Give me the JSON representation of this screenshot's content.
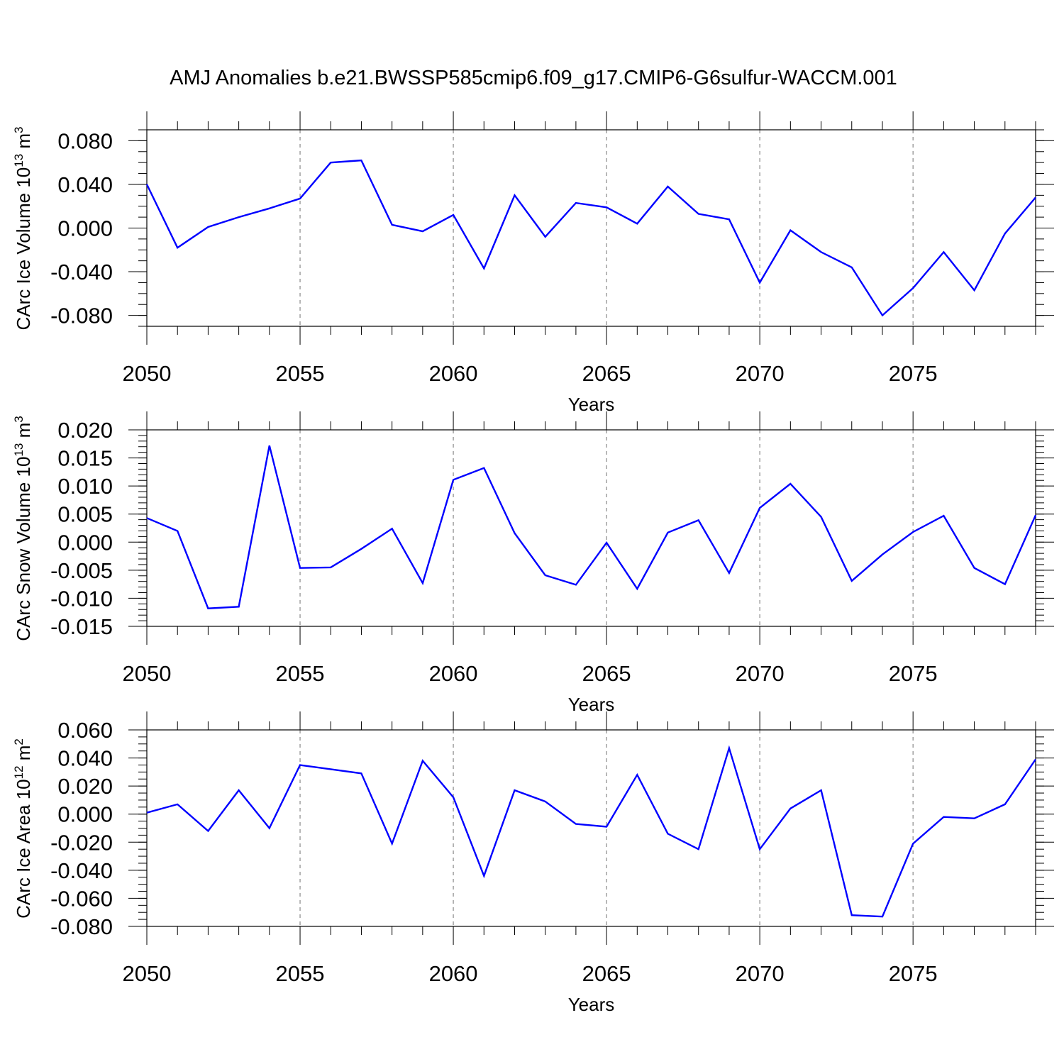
{
  "figure": {
    "title": "AMJ Anomalies b.e21.BWSSP585cmip6.f09_g17.CMIP6-G6sulfur-WACCM.001"
  },
  "chart_data": [
    {
      "type": "line",
      "ylabel": "CArc Ice Volume 10",
      "ylabel_exponent": "13",
      "ylabel_unit": "m",
      "ylabel_unit_exponent": "3",
      "xlabel": "Years",
      "xlim": [
        2050,
        2079
      ],
      "ylim": [
        -0.09,
        0.09
      ],
      "xticks": [
        2050,
        2055,
        2060,
        2065,
        2070,
        2075
      ],
      "xtick_labels": [
        "2050",
        "2055",
        "2060",
        "2065",
        "2070",
        "2075"
      ],
      "yticks": [
        -0.08,
        -0.04,
        0.0,
        0.04,
        0.08
      ],
      "ytick_labels": [
        "-0.080",
        "-0.040",
        "0.000",
        "0.040",
        "0.080"
      ],
      "yminor_step": 0.01,
      "grid": "vertical-dashed",
      "color": "#0000ff",
      "x": [
        2050,
        2051,
        2052,
        2053,
        2054,
        2055,
        2056,
        2057,
        2058,
        2059,
        2060,
        2061,
        2062,
        2063,
        2064,
        2065,
        2066,
        2067,
        2068,
        2069,
        2070,
        2071,
        2072,
        2073,
        2074,
        2075,
        2076,
        2077,
        2078,
        2079
      ],
      "values": [
        0.04,
        -0.018,
        0.001,
        0.01,
        0.018,
        0.027,
        0.06,
        0.062,
        0.003,
        -0.003,
        0.012,
        -0.037,
        0.03,
        -0.008,
        0.023,
        0.019,
        0.004,
        0.038,
        0.013,
        0.008,
        -0.05,
        -0.002,
        -0.022,
        -0.036,
        -0.08,
        -0.055,
        -0.022,
        -0.057,
        -0.005,
        0.028
      ]
    },
    {
      "type": "line",
      "ylabel": "CArc Snow Volume 10",
      "ylabel_exponent": "13",
      "ylabel_unit": "m",
      "ylabel_unit_exponent": "3",
      "xlabel": "Years",
      "xlim": [
        2050,
        2079
      ],
      "ylim": [
        -0.015,
        0.02
      ],
      "xticks": [
        2050,
        2055,
        2060,
        2065,
        2070,
        2075
      ],
      "xtick_labels": [
        "2050",
        "2055",
        "2060",
        "2065",
        "2070",
        "2075"
      ],
      "yticks": [
        -0.015,
        -0.01,
        -0.005,
        0.0,
        0.005,
        0.01,
        0.015,
        0.02
      ],
      "ytick_labels": [
        "-0.015",
        "-0.010",
        "-0.005",
        "0.000",
        "0.005",
        "0.010",
        "0.015",
        "0.020"
      ],
      "yminor_step": 0.001,
      "grid": "vertical-dashed",
      "color": "#0000ff",
      "x": [
        2050,
        2051,
        2052,
        2053,
        2054,
        2055,
        2056,
        2057,
        2058,
        2059,
        2060,
        2061,
        2062,
        2063,
        2064,
        2065,
        2066,
        2067,
        2068,
        2069,
        2070,
        2071,
        2072,
        2073,
        2074,
        2075,
        2076,
        2077,
        2078,
        2079
      ],
      "values": [
        0.0043,
        0.002,
        -0.0118,
        -0.0115,
        0.0172,
        -0.0046,
        -0.0045,
        -0.0012,
        0.0024,
        -0.0073,
        0.0111,
        0.0132,
        0.0016,
        -0.0059,
        -0.0076,
        -0.0001,
        -0.0083,
        0.0017,
        0.0039,
        -0.0055,
        0.0061,
        0.0104,
        0.0045,
        -0.0069,
        -0.0022,
        0.0018,
        0.0047,
        -0.0046,
        -0.0075,
        0.0048
      ]
    },
    {
      "type": "line",
      "ylabel": "CArc Ice Area 10",
      "ylabel_exponent": "12",
      "ylabel_unit": "m",
      "ylabel_unit_exponent": "2",
      "xlabel": "Years",
      "xlim": [
        2050,
        2079
      ],
      "ylim": [
        -0.08,
        0.06
      ],
      "xticks": [
        2050,
        2055,
        2060,
        2065,
        2070,
        2075
      ],
      "xtick_labels": [
        "2050",
        "2055",
        "2060",
        "2065",
        "2070",
        "2075"
      ],
      "yticks": [
        -0.08,
        -0.06,
        -0.04,
        -0.02,
        0.0,
        0.02,
        0.04,
        0.06
      ],
      "ytick_labels": [
        "-0.080",
        "-0.060",
        "-0.040",
        "-0.020",
        "0.000",
        "0.020",
        "0.040",
        "0.060"
      ],
      "yminor_step": 0.005,
      "grid": "vertical-dashed",
      "color": "#0000ff",
      "x": [
        2050,
        2051,
        2052,
        2053,
        2054,
        2055,
        2056,
        2057,
        2058,
        2059,
        2060,
        2061,
        2062,
        2063,
        2064,
        2065,
        2066,
        2067,
        2068,
        2069,
        2070,
        2071,
        2072,
        2073,
        2074,
        2075,
        2076,
        2077,
        2078,
        2079
      ],
      "values": [
        0.001,
        0.007,
        -0.012,
        0.017,
        -0.01,
        0.035,
        0.032,
        0.029,
        -0.021,
        0.038,
        0.012,
        -0.044,
        0.017,
        0.009,
        -0.007,
        -0.009,
        0.028,
        -0.014,
        -0.025,
        0.047,
        -0.025,
        0.004,
        0.017,
        -0.072,
        -0.073,
        -0.021,
        -0.002,
        -0.003,
        0.007,
        0.039
      ]
    }
  ]
}
